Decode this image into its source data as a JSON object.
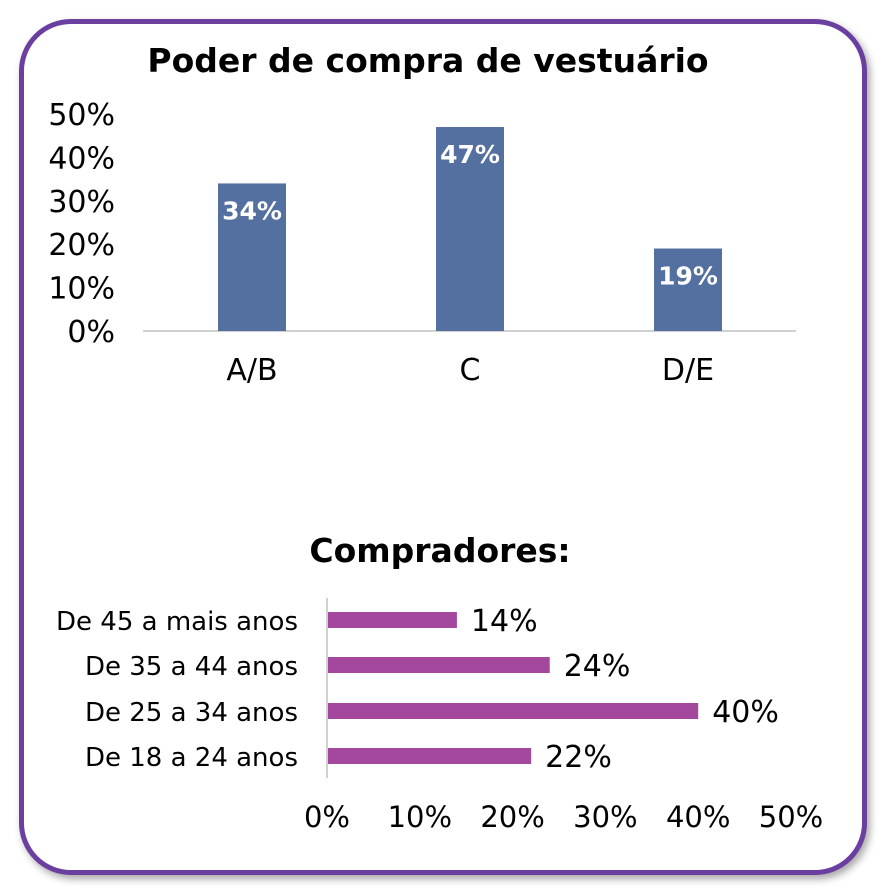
{
  "chart_data": [
    {
      "type": "bar",
      "title": "Poder de compra de vestuário",
      "categories": [
        "A/B",
        "C",
        "D/E"
      ],
      "values": [
        34,
        47,
        19
      ],
      "data_labels": [
        "34%",
        "47%",
        "19%"
      ],
      "ylim": [
        0,
        50
      ],
      "yticks": [
        "0%",
        "10%",
        "20%",
        "30%",
        "40%",
        "50%"
      ],
      "grid": false,
      "color": "#5470a0"
    },
    {
      "type": "bar",
      "orientation": "horizontal",
      "title": "Compradores:",
      "categories": [
        "De 45 a mais anos",
        "De 35 a 44 anos",
        "De 25 a 34 anos",
        "De 18 a 24 anos"
      ],
      "values": [
        14,
        24,
        40,
        22
      ],
      "data_labels": [
        "14%",
        "24%",
        "40%",
        "22%"
      ],
      "xlim": [
        0,
        50
      ],
      "xticks": [
        "0%",
        "10%",
        "20%",
        "30%",
        "40%",
        "50%"
      ],
      "grid": false,
      "color": "#a4489e"
    }
  ]
}
